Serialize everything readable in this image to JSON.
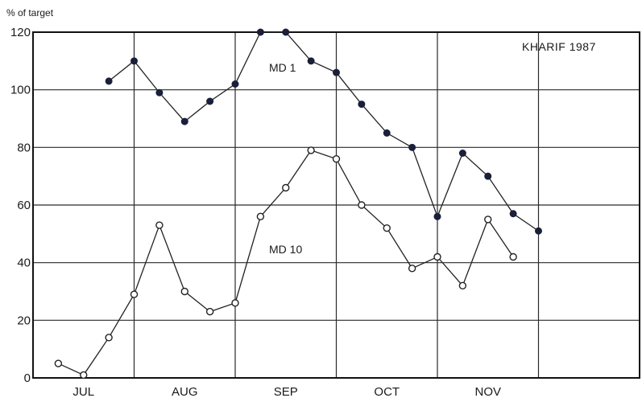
{
  "chart_data": {
    "type": "line",
    "ylabel": "% of target",
    "xlabel": "",
    "annotation": "KHARIF 1987",
    "ylim": [
      0,
      120
    ],
    "yticks": [
      0,
      20,
      40,
      60,
      80,
      100,
      120
    ],
    "months": [
      "JUL",
      "AUG",
      "SEP",
      "OCT",
      "NOV"
    ],
    "x_range": [
      0,
      12
    ],
    "month_centers": [
      1,
      3,
      5,
      7,
      9
    ],
    "grid_x": [
      2,
      4,
      6,
      8,
      10
    ],
    "grid": true,
    "series": [
      {
        "name": "MD 1",
        "marker": "filled",
        "x": [
          1.5,
          2.0,
          2.5,
          3.0,
          3.5,
          4.0,
          4.5,
          5.0,
          5.5,
          6.0,
          6.5,
          7.0,
          7.5,
          8.0,
          8.5,
          9.0,
          9.5,
          10.0
        ],
        "values": [
          103,
          110,
          99,
          89,
          96,
          102,
          120,
          120,
          110,
          106,
          95,
          85,
          80,
          56,
          78,
          70,
          57,
          51
        ]
      },
      {
        "name": "MD 10",
        "marker": "open",
        "x": [
          0.5,
          1.0,
          1.5,
          2.0,
          2.5,
          3.0,
          3.5,
          4.0,
          4.5,
          5.0,
          5.5,
          6.0,
          6.5,
          7.0,
          7.5,
          8.0,
          8.5,
          9.0,
          9.5
        ],
        "values": [
          5,
          1,
          14,
          29,
          53,
          30,
          23,
          26,
          56,
          66,
          79,
          76,
          60,
          52,
          38,
          42,
          32,
          55,
          42
        ]
      }
    ]
  }
}
